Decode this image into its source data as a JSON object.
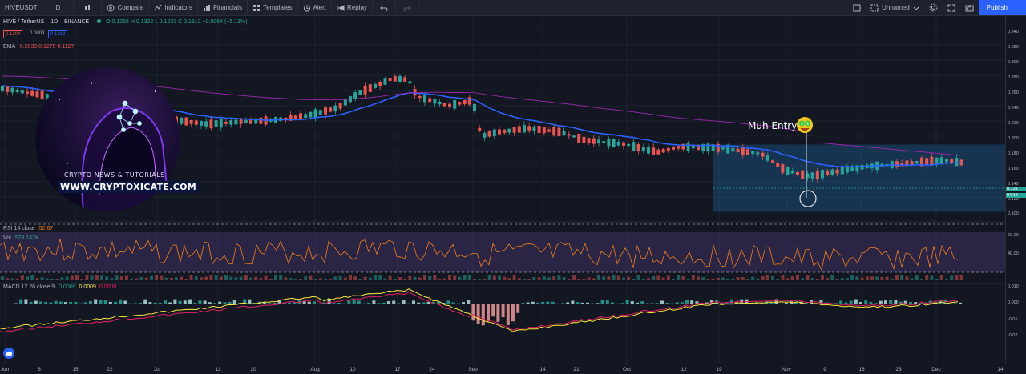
{
  "toolbar": {
    "symbol": "HIVEUSDT",
    "interval": "D",
    "compare": "Compare",
    "indicators": "Indicators",
    "financials": "Financials",
    "templates": "Templates",
    "alert": "Alert",
    "replay": "Replay",
    "unnamed": "Unnamed",
    "publish": "Publish"
  },
  "legend": {
    "title": "HIVE / TetherUS",
    "tf": "1D",
    "exchange": "BINANCE",
    "ohlc": "O 0.1255  H 0.1322  L 0.1233  C 0.1312  +0.0064 (+5.13%)",
    "bid": "0.1304",
    "spread": "0.0009",
    "ask": "0.1313",
    "ema_label": "EMA",
    "ema_values": "0.2030  0.1275  0.1127",
    "rsi_label": "RSI 14 close",
    "rsi_value": "52.67",
    "vol_label": "Vol",
    "vol_value": "578.142K",
    "macd_label": "MACD 12 26 close 9",
    "macd_v1": "0.0009",
    "macd_v2": "0.0009",
    "macd_v3": "0.0000"
  },
  "price_axis": [
    "0.340",
    "0.320",
    "0.300",
    "0.280",
    "0.260",
    "0.240",
    "0.220",
    "0.200",
    "0.180",
    "0.160",
    "0.140",
    "0.120",
    "0.100"
  ],
  "price_tags": {
    "current": "0.131",
    "countdown": "04:18"
  },
  "rsi_axis": [
    "60.00",
    "40.00"
  ],
  "macd_axis": [
    "0.010",
    "0.000",
    "-0.01",
    "-0.02"
  ],
  "x_axis": [
    "Jun",
    "8",
    "15",
    "22",
    "Jul",
    "13",
    "20",
    "Aug",
    "10",
    "17",
    "24",
    "Sep",
    "14",
    "21",
    "Oct",
    "12",
    "19",
    "Nov",
    "9",
    "16",
    "23",
    "Dec",
    "14"
  ],
  "annotation": "Muh Entry",
  "logo": {
    "line1": "CRYPTO NEWS & TUTORIALS",
    "line2": "WWW.CRYPTOXICATE.COM"
  },
  "colors": {
    "up": "#26a69a",
    "down": "#ef5350",
    "ema_fast": "#2962ff",
    "ema_slow": "#9c27b0",
    "rsi": "#f57f17",
    "macd": "#ffeb3b",
    "signal": "#e91e63"
  }
}
